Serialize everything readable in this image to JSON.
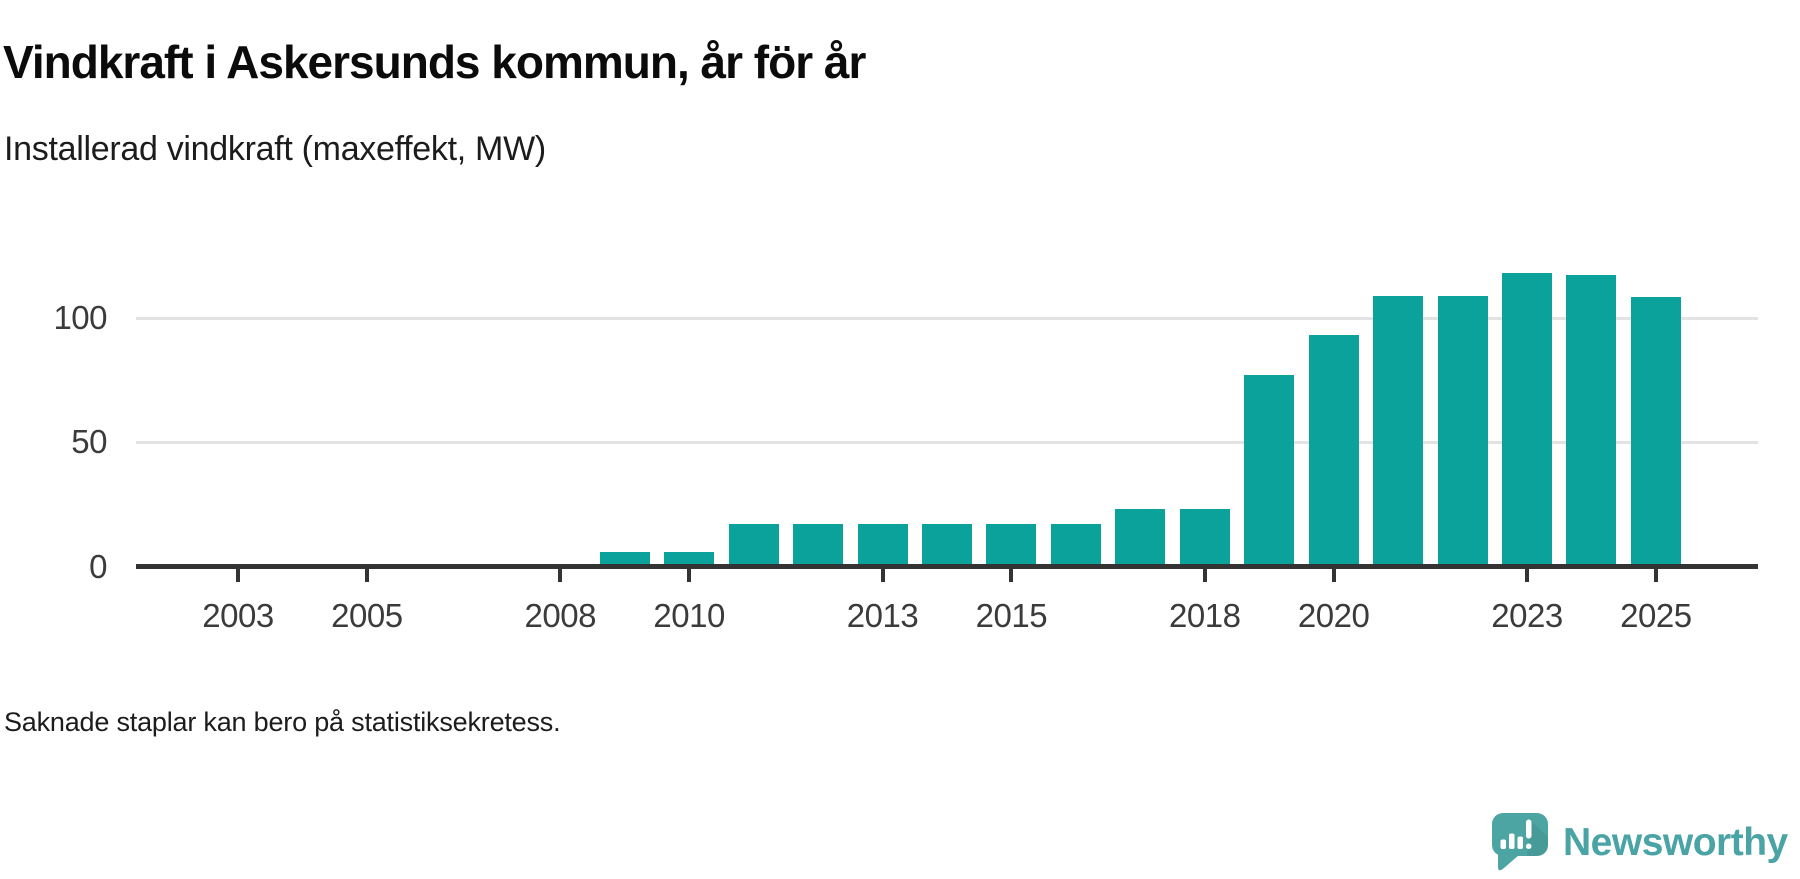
{
  "header": {
    "title": "Vindkraft i Askersunds kommun, år för år",
    "subtitle": "Installerad vindkraft (maxeffekt, MW)"
  },
  "chart_data": {
    "type": "bar",
    "title": "Vindkraft i Askersunds kommun, år för år",
    "subtitle": "Installerad vindkraft (maxeffekt, MW)",
    "xlabel": "",
    "ylabel": "Installerad vindkraft (maxeffekt, MW)",
    "x": [
      2003,
      2004,
      2005,
      2006,
      2007,
      2008,
      2009,
      2010,
      2011,
      2012,
      2013,
      2014,
      2015,
      2016,
      2017,
      2018,
      2019,
      2020,
      2021,
      2022,
      2023,
      2024,
      2025
    ],
    "values": [
      null,
      null,
      null,
      null,
      null,
      null,
      6,
      6,
      17,
      17,
      17,
      17,
      17,
      17,
      23,
      23,
      77,
      93,
      109,
      109,
      118,
      117.5,
      108.5
    ],
    "missing_values_reason": "Saknade staplar kan bero på statistiksekretess.",
    "yticks": [
      0,
      50,
      100
    ],
    "xtick_labels": [
      2003,
      2005,
      2008,
      2010,
      2013,
      2015,
      2018,
      2020,
      2023,
      2025
    ],
    "ylim": [
      0,
      130
    ],
    "grid": true,
    "legend_position": "none",
    "bar_color": "#0AA29A"
  },
  "footer": {
    "note": "Saknade staplar kan bero på statistiksekretess."
  },
  "branding": {
    "name": "Newsworthy",
    "icon": "newsworthy-speech-bubble-barchart-icon",
    "text_color": "#4AA3A4",
    "icon_color": "#4CA5A2"
  },
  "colors": {
    "bar": "#0AA29A",
    "axis": "#333333",
    "gridline": "#e3e3e3",
    "title_text": "#0b0b0b",
    "body_text": "#1c1c1c",
    "tick_text": "#3b3b3b"
  }
}
